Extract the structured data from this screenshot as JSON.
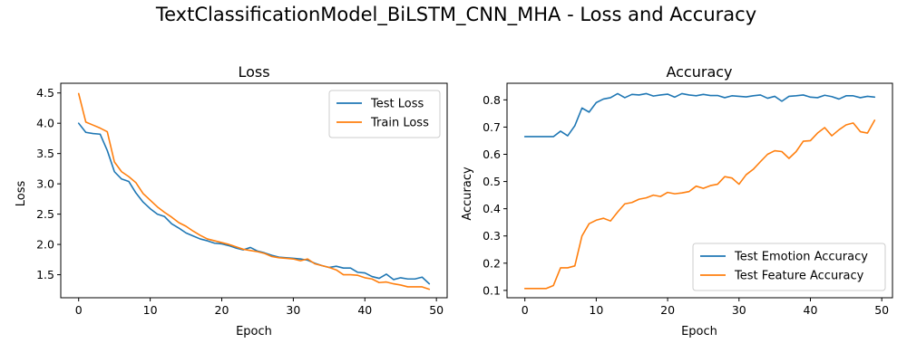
{
  "suptitle": "TextClassificationModel_BiLSTM_CNN_MHA - Loss and Accuracy",
  "chart_data": [
    {
      "type": "line",
      "title": "Loss",
      "xlabel": "Epoch",
      "ylabel": "Loss",
      "xlim": [
        -2.5,
        51.5
      ],
      "ylim": [
        1.12,
        4.66
      ],
      "xticks": [
        0,
        10,
        20,
        30,
        40,
        50
      ],
      "yticks": [
        1.5,
        2.0,
        2.5,
        3.0,
        3.5,
        4.0,
        4.5
      ],
      "ytick_format": 1,
      "legend_position": "top-right",
      "x": [
        0,
        1,
        2,
        3,
        4,
        5,
        6,
        7,
        8,
        9,
        10,
        11,
        12,
        13,
        14,
        15,
        16,
        17,
        18,
        19,
        20,
        21,
        22,
        23,
        24,
        25,
        26,
        27,
        28,
        29,
        30,
        31,
        32,
        33,
        34,
        35,
        36,
        37,
        38,
        39,
        40,
        41,
        42,
        43,
        44,
        45,
        46,
        47,
        48,
        49
      ],
      "series": [
        {
          "name": "Test Loss",
          "color": "#1f77b4",
          "values": [
            4.0,
            3.85,
            3.83,
            3.82,
            3.55,
            3.2,
            3.08,
            3.04,
            2.85,
            2.7,
            2.59,
            2.5,
            2.46,
            2.34,
            2.27,
            2.19,
            2.14,
            2.09,
            2.06,
            2.02,
            2.01,
            1.98,
            1.94,
            1.91,
            1.95,
            1.89,
            1.86,
            1.82,
            1.79,
            1.78,
            1.77,
            1.76,
            1.74,
            1.69,
            1.65,
            1.62,
            1.64,
            1.61,
            1.61,
            1.54,
            1.53,
            1.47,
            1.44,
            1.51,
            1.42,
            1.45,
            1.43,
            1.43,
            1.46,
            1.35
          ]
        },
        {
          "name": "Train Loss",
          "color": "#ff7f0e",
          "values": [
            4.49,
            4.02,
            3.97,
            3.92,
            3.86,
            3.36,
            3.2,
            3.12,
            3.02,
            2.84,
            2.73,
            2.62,
            2.53,
            2.45,
            2.36,
            2.3,
            2.22,
            2.15,
            2.09,
            2.06,
            2.03,
            2.0,
            1.96,
            1.92,
            1.9,
            1.88,
            1.85,
            1.8,
            1.78,
            1.77,
            1.76,
            1.73,
            1.76,
            1.68,
            1.65,
            1.62,
            1.58,
            1.5,
            1.5,
            1.49,
            1.45,
            1.43,
            1.37,
            1.38,
            1.35,
            1.33,
            1.3,
            1.3,
            1.3,
            1.26
          ]
        }
      ]
    },
    {
      "type": "line",
      "title": "Accuracy",
      "xlabel": "Epoch",
      "ylabel": "Accuracy",
      "xlim": [
        -2.5,
        51.5
      ],
      "ylim": [
        0.073,
        0.861
      ],
      "xticks": [
        0,
        10,
        20,
        30,
        40,
        50
      ],
      "yticks": [
        0.1,
        0.2,
        0.3,
        0.4,
        0.5,
        0.6,
        0.7,
        0.8
      ],
      "ytick_format": 1,
      "legend_position": "bottom-right",
      "x": [
        0,
        1,
        2,
        3,
        4,
        5,
        6,
        7,
        8,
        9,
        10,
        11,
        12,
        13,
        14,
        15,
        16,
        17,
        18,
        19,
        20,
        21,
        22,
        23,
        24,
        25,
        26,
        27,
        28,
        29,
        30,
        31,
        32,
        33,
        34,
        35,
        36,
        37,
        38,
        39,
        40,
        41,
        42,
        43,
        44,
        45,
        46,
        47,
        48,
        49
      ],
      "series": [
        {
          "name": "Test Emotion Accuracy",
          "color": "#1f77b4",
          "values": [
            0.665,
            0.665,
            0.665,
            0.665,
            0.665,
            0.685,
            0.668,
            0.705,
            0.77,
            0.755,
            0.79,
            0.803,
            0.808,
            0.823,
            0.808,
            0.82,
            0.818,
            0.823,
            0.814,
            0.818,
            0.821,
            0.81,
            0.823,
            0.818,
            0.815,
            0.82,
            0.816,
            0.816,
            0.808,
            0.815,
            0.813,
            0.811,
            0.815,
            0.818,
            0.806,
            0.813,
            0.795,
            0.813,
            0.815,
            0.818,
            0.81,
            0.808,
            0.817,
            0.812,
            0.803,
            0.815,
            0.815,
            0.808,
            0.813,
            0.81
          ]
        },
        {
          "name": "Test Feature Accuracy",
          "color": "#ff7f0e",
          "values": [
            0.107,
            0.107,
            0.107,
            0.107,
            0.118,
            0.183,
            0.183,
            0.19,
            0.3,
            0.345,
            0.358,
            0.365,
            0.355,
            0.388,
            0.418,
            0.423,
            0.435,
            0.44,
            0.45,
            0.445,
            0.46,
            0.455,
            0.458,
            0.463,
            0.483,
            0.475,
            0.485,
            0.49,
            0.518,
            0.513,
            0.49,
            0.525,
            0.545,
            0.573,
            0.6,
            0.613,
            0.61,
            0.585,
            0.61,
            0.648,
            0.65,
            0.678,
            0.698,
            0.668,
            0.69,
            0.708,
            0.715,
            0.683,
            0.678,
            0.725
          ]
        }
      ]
    }
  ]
}
